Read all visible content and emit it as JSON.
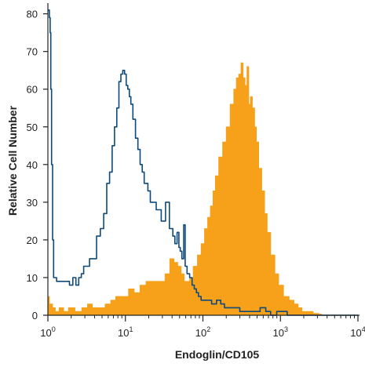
{
  "chart_data": {
    "type": "area",
    "xlabel": "Endoglin/CD105",
    "ylabel": "Relative Cell Number",
    "xscale": "log",
    "xlim": [
      1,
      10000
    ],
    "ylim": [
      0,
      82
    ],
    "xticks": [
      {
        "value": 1,
        "base": "10",
        "exp": "0"
      },
      {
        "value": 10,
        "base": "10",
        "exp": "1"
      },
      {
        "value": 100,
        "base": "10",
        "exp": "2"
      },
      {
        "value": 1000,
        "base": "10",
        "exp": "3"
      },
      {
        "value": 10000,
        "base": "10",
        "exp": "4"
      }
    ],
    "yticks": [
      0,
      10,
      20,
      30,
      40,
      50,
      60,
      70,
      80
    ],
    "grid": false,
    "legend": "none",
    "series": [
      {
        "style": "filled",
        "color": "#f7a11a",
        "x": [
          1.0,
          1.1,
          1.2,
          1.3,
          1.5,
          1.7,
          2.0,
          2.5,
          3.0,
          3.5,
          4.0,
          5.0,
          6.0,
          7.0,
          8.0,
          10,
          12,
          14,
          17,
          20,
          25,
          30,
          35,
          40,
          45,
          50,
          55,
          60,
          65,
          70,
          80,
          90,
          100,
          110,
          120,
          130,
          140,
          150,
          170,
          190,
          210,
          240,
          260,
          280,
          300,
          320,
          340,
          360,
          380,
          400,
          420,
          450,
          480,
          500,
          550,
          600,
          650,
          700,
          800,
          900,
          1000,
          1200,
          1400,
          1600,
          1800,
          2000,
          2200,
          2500,
          2800,
          3000,
          3300,
          3500,
          4000,
          5000,
          7000,
          10000
        ],
        "y": [
          5,
          3,
          2,
          1,
          2,
          1,
          2,
          1,
          2,
          3,
          2,
          2,
          3,
          4,
          5,
          5,
          7,
          6,
          8,
          9,
          9,
          9,
          11,
          15,
          14,
          13,
          11,
          9,
          9,
          10,
          13,
          16,
          19,
          23,
          26,
          29,
          33,
          37,
          42,
          46,
          50,
          56,
          60,
          63,
          64,
          67,
          63,
          61,
          66,
          56,
          58,
          55,
          50,
          46,
          39,
          33,
          27,
          22,
          16,
          11,
          8,
          5,
          4,
          3,
          2,
          1,
          1,
          1,
          0.5,
          0.5,
          0.3,
          0,
          0,
          0,
          0,
          0
        ]
      },
      {
        "style": "outline",
        "color": "#0d4a7c",
        "x": [
          1.0,
          1.03,
          1.06,
          1.08,
          1.1,
          1.13,
          1.17,
          1.2,
          1.4,
          1.6,
          1.8,
          2.0,
          2.2,
          2.4,
          2.6,
          2.8,
          3.0,
          3.3,
          3.6,
          4.0,
          4.5,
          5.0,
          5.5,
          6.0,
          6.5,
          7.0,
          7.5,
          8.0,
          8.5,
          9.0,
          9.5,
          10.0,
          10.5,
          11.0,
          11.5,
          12,
          13,
          14,
          15,
          16,
          17,
          18,
          19,
          20,
          22,
          24,
          26,
          28,
          30,
          32,
          34,
          36,
          38,
          40,
          42,
          45,
          48,
          50,
          52,
          55,
          58,
          60,
          65,
          70,
          75,
          80,
          85,
          90,
          100,
          120,
          140,
          160,
          180,
          200,
          240,
          280,
          320,
          400,
          500,
          600,
          700,
          800,
          1000,
          1500,
          2000,
          4000,
          10000
        ],
        "y": [
          81,
          81,
          79,
          75,
          60,
          40,
          20,
          10,
          9,
          9,
          9,
          8,
          10,
          8,
          10,
          11,
          13,
          13,
          15,
          15,
          21,
          23,
          27,
          35,
          38,
          45,
          50,
          55,
          62,
          64,
          65,
          64,
          61,
          60,
          58,
          56,
          52,
          47,
          44,
          40,
          38,
          35,
          35,
          33,
          30,
          30,
          28,
          28,
          25,
          25,
          30,
          30,
          23,
          23,
          21,
          19,
          22,
          18,
          17,
          15,
          24,
          13,
          11,
          10,
          8,
          7,
          6,
          5,
          4,
          4,
          3,
          4,
          3,
          2,
          2,
          2,
          1,
          1,
          1,
          2,
          1,
          0,
          1,
          0,
          0,
          0,
          0
        ]
      }
    ]
  }
}
